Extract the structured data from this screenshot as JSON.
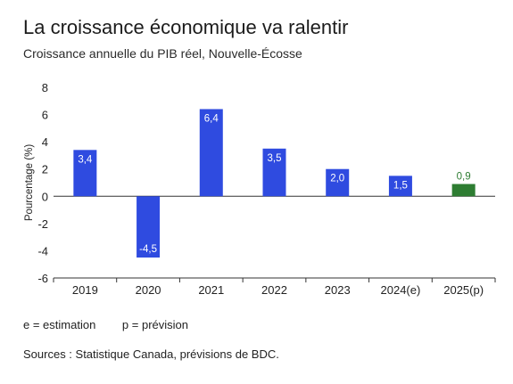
{
  "title": "La croissance économique va ralentir",
  "subtitle": "Croissance annuelle du PIB réel, Nouvelle-Écosse",
  "notes": {
    "estimation": "e = estimation",
    "prevision": "p = prévision"
  },
  "sources": "Sources : Statistique Canada, prévisions de BDC.",
  "colors": {
    "actual": "#2f4be0",
    "forecast": "#2e7d32",
    "forecast_label": "#2e7d32",
    "axis": "#333333"
  },
  "chart_data": {
    "type": "bar",
    "categories": [
      "2019",
      "2020",
      "2021",
      "2022",
      "2023",
      "2024(e)",
      "2025(p)"
    ],
    "values": [
      3.4,
      -4.5,
      6.4,
      3.5,
      2.0,
      1.5,
      0.9
    ],
    "data_labels": [
      "3,4",
      "-4,5",
      "6,4",
      "3,5",
      "2,0",
      "1,5",
      "0,9"
    ],
    "forecast_index": [
      6
    ],
    "ylabel": "Pourcentage (%)",
    "xlabel": "",
    "ylim": [
      -6,
      8
    ],
    "yticks": [
      -6,
      -4,
      -2,
      0,
      2,
      4,
      6,
      8
    ],
    "ytick_labels": [
      "-6",
      "-4",
      "-2",
      "0",
      "2",
      "4",
      "6",
      "8"
    ],
    "grid": false,
    "legend": "none"
  }
}
